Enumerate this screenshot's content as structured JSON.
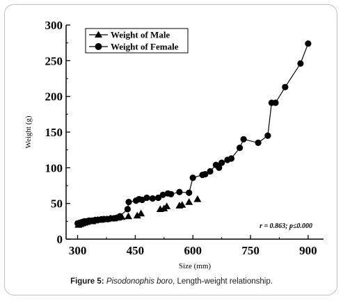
{
  "caption": {
    "label": "Figure 5:",
    "species": "Pisodonophis boro",
    "rest": ", Length-weight relationship."
  },
  "chart_data": {
    "type": "line",
    "title": "",
    "xlabel": "Size (mm)",
    "ylabel": "Weight (g)",
    "xlim": [
      270,
      940
    ],
    "ylim": [
      0,
      300
    ],
    "xticks": [
      "300",
      "450",
      "600",
      "750",
      "900"
    ],
    "yticks": [
      "0",
      "50",
      "100",
      "150",
      "200",
      "250",
      "300"
    ],
    "legend_position": "top-left",
    "annotation": "r = 0.863; p≤0.000",
    "series": [
      {
        "name": "Weight of Male",
        "marker": "triangle",
        "line": false,
        "x": [
          302,
          307,
          312,
          318,
          324,
          330,
          338,
          345,
          352,
          360,
          368,
          376,
          385,
          395,
          405,
          415,
          432,
          455,
          465,
          515,
          525,
          532,
          565,
          572,
          590,
          612
        ],
        "y": [
          20,
          21,
          22,
          23,
          24,
          25,
          25,
          26,
          27,
          27,
          28,
          28,
          29,
          29,
          30,
          31,
          32,
          33,
          36,
          42,
          43,
          46,
          47,
          48,
          52,
          56
        ]
      },
      {
        "name": "Weight of Female",
        "marker": "circle",
        "line": true,
        "x": [
          300,
          306,
          312,
          318,
          324,
          330,
          338,
          346,
          354,
          362,
          370,
          378,
          386,
          394,
          402,
          410,
          430,
          433,
          452,
          460,
          468,
          480,
          495,
          510,
          522,
          535,
          543,
          565,
          590,
          600,
          625,
          632,
          645,
          660,
          668,
          675,
          690,
          700,
          722,
          732,
          770,
          795,
          805,
          815,
          840,
          880,
          900
        ],
        "y": [
          22,
          23,
          24,
          25,
          25,
          26,
          26,
          27,
          27,
          28,
          28,
          28,
          29,
          29,
          30,
          32,
          42,
          52,
          54,
          56,
          55,
          58,
          57,
          58,
          62,
          64,
          63,
          66,
          65,
          86,
          90,
          91,
          95,
          104,
          100,
          107,
          111,
          113,
          128,
          140,
          135,
          145,
          191,
          191,
          213,
          246,
          274
        ]
      }
    ]
  }
}
